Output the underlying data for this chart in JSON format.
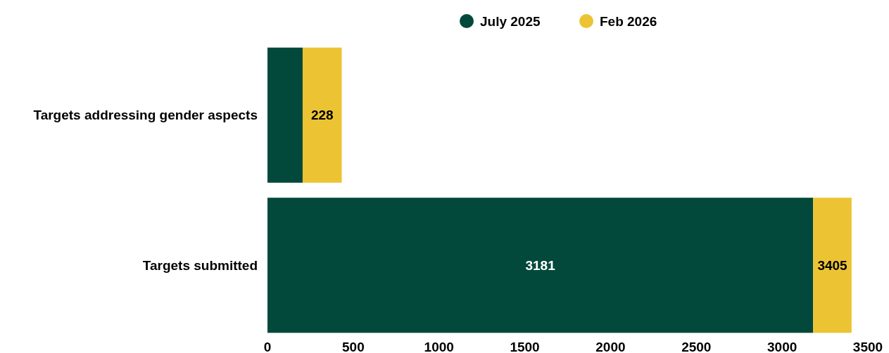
{
  "chart_data": {
    "type": "bar",
    "orientation": "horizontal",
    "stacked": true,
    "categories": [
      "Targets addressing gender aspects",
      "Targets submitted"
    ],
    "series": [
      {
        "name": "July 2025",
        "color": "#02493b",
        "values": [
          205,
          3181
        ],
        "value_labels": [
          null,
          "3181"
        ]
      },
      {
        "name": "Feb 2026",
        "color": "#ecc433",
        "values": [
          228,
          224
        ],
        "value_labels": [
          "228",
          null
        ]
      }
    ],
    "totals": [
      null,
      "3405"
    ],
    "xlim": [
      0,
      3500
    ],
    "xticks": [
      0,
      500,
      1000,
      1500,
      2000,
      2500,
      3000,
      3500
    ],
    "grid": false,
    "legend": "top"
  }
}
